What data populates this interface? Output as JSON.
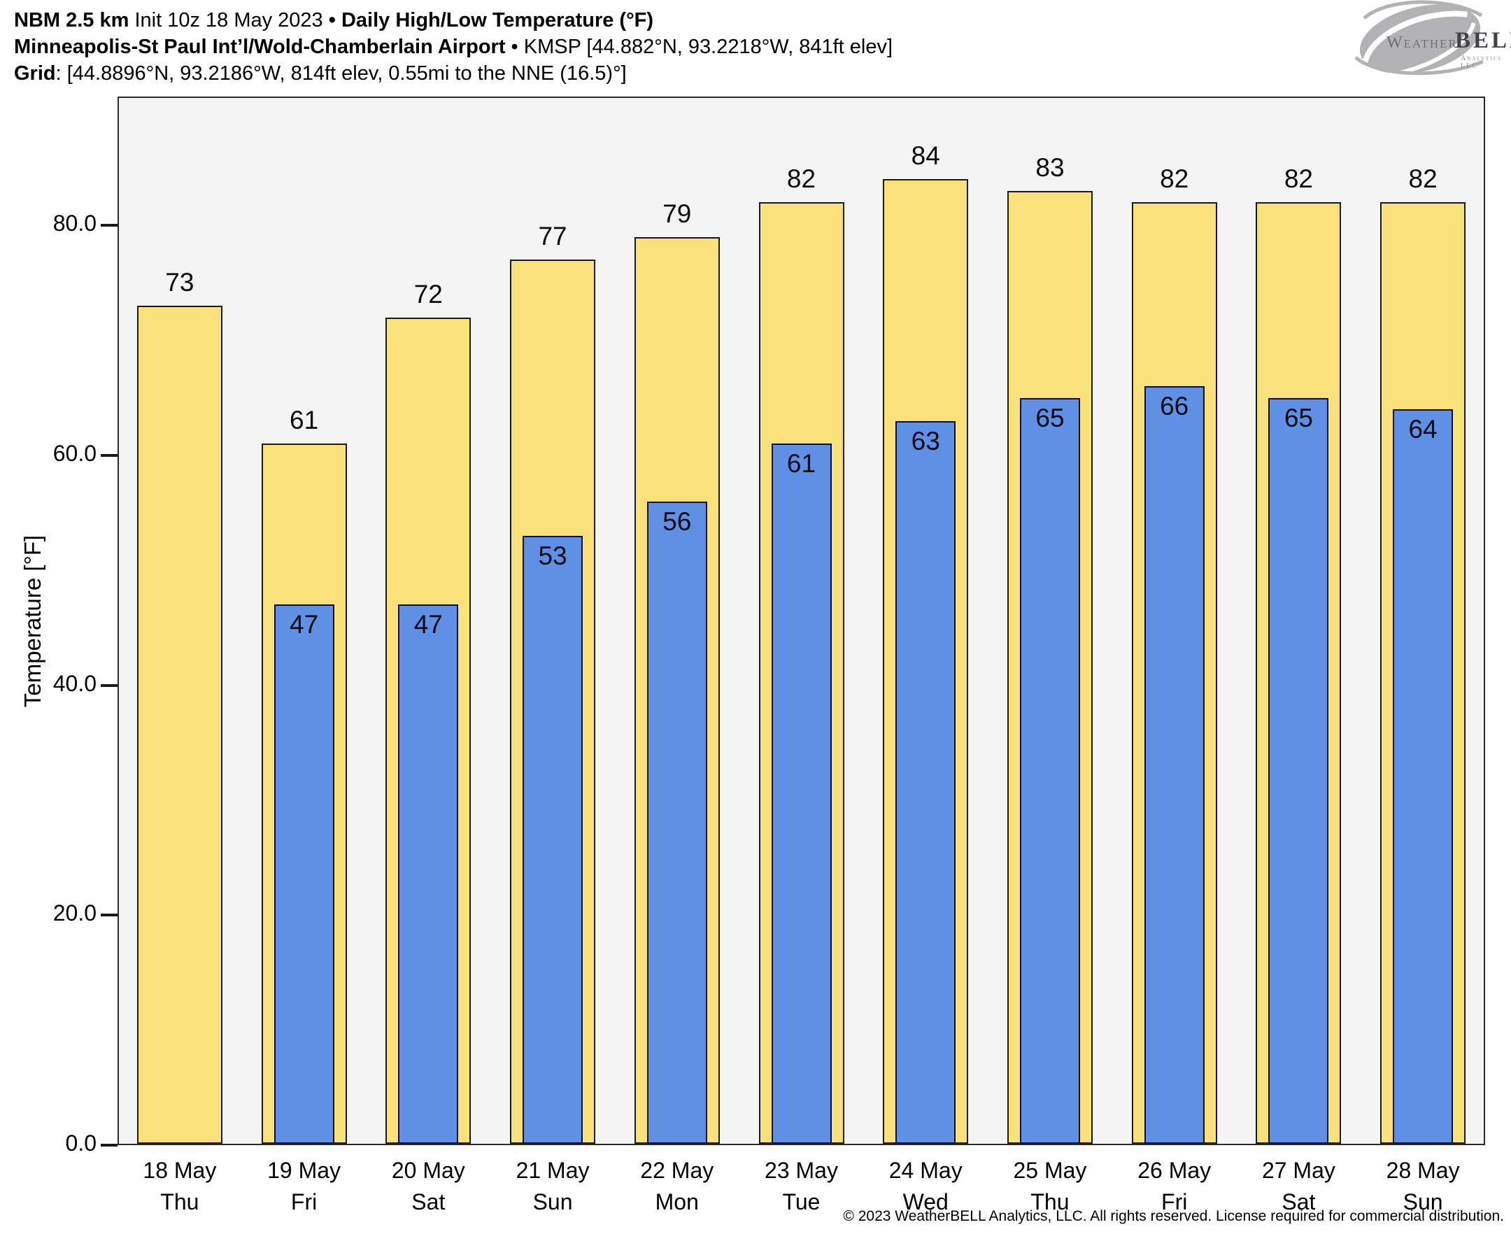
{
  "header": {
    "lines": [
      [
        {
          "t": "NBM 2.5 km",
          "b": true
        },
        {
          "t": " Init 10z 18 May 2023 ",
          "b": false
        },
        {
          "t": "• ",
          "b": true
        },
        {
          "t": "Daily High/Low Temperature (°F)",
          "b": true
        }
      ],
      [
        {
          "t": "Minneapolis-St Paul Int’l/Wold-Chamberlain Airport",
          "b": true
        },
        {
          "t": " • KMSP [44.882°N, 93.2218°W, 841ft elev]",
          "b": false
        }
      ],
      [
        {
          "t": "Grid",
          "b": true
        },
        {
          "t": ": [44.8896°N, 93.2186°W, 814ft elev, 0.55mi to the NNE (16.5)°]",
          "b": false
        }
      ]
    ]
  },
  "logo": {
    "weather": "Weather",
    "bell": "BELL",
    "subtext": "Analytics LLC"
  },
  "chart_data": {
    "type": "bar",
    "title": "NBM 2.5 km Init 10z 18 May 2023 • Daily High/Low Temperature (°F)",
    "station": "Minneapolis-St Paul Int’l/Wold-Chamberlain Airport • KMSP [44.882°N, 93.2218°W, 841ft elev]",
    "grid_point": "[44.8896°N, 93.2186°W, 814ft elev, 0.55mi to the NNE (16.5)°]",
    "categories": [
      "18 May",
      "19 May",
      "20 May",
      "21 May",
      "22 May",
      "23 May",
      "24 May",
      "25 May",
      "26 May",
      "27 May",
      "28 May"
    ],
    "weekdays": [
      "Thu",
      "Fri",
      "Sat",
      "Sun",
      "Mon",
      "Tue",
      "Wed",
      "Thu",
      "Fri",
      "Sat",
      "Sun"
    ],
    "series": [
      {
        "name": "Daily High",
        "color": "#FAE17B",
        "values": [
          73,
          61,
          72,
          77,
          79,
          82,
          84,
          83,
          82,
          82,
          82
        ]
      },
      {
        "name": "Daily Low",
        "color": "#5F90E6",
        "values": [
          null,
          47,
          47,
          53,
          56,
          61,
          63,
          65,
          66,
          65,
          64
        ]
      }
    ],
    "xlabel": "",
    "ylabel": "Temperature [°F]",
    "yticks": [
      0,
      20,
      40,
      60,
      80
    ],
    "ytick_labels": [
      "0.0",
      "20.0",
      "40.0",
      "60.0",
      "80.0"
    ],
    "ylim": [
      0,
      91.2
    ],
    "grid": false,
    "legend": "none",
    "plot_bg": "#F4F4F5",
    "bar_outline": "#1A1A1A",
    "low_bar_outline": "#10102A"
  },
  "footer": {
    "copyright": "© 2023 WeatherBELL Analytics, LLC. All rights reserved. License required for commercial distribution."
  }
}
